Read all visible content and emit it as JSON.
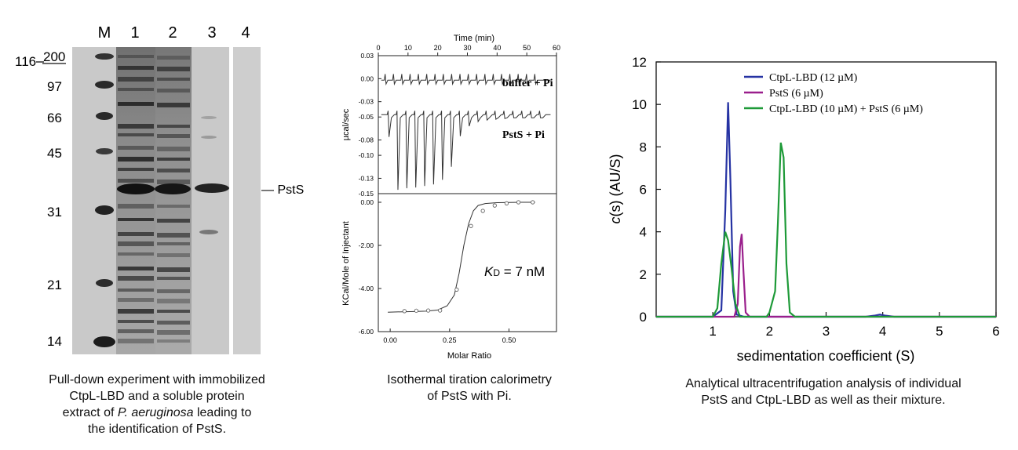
{
  "gel": {
    "lane_labels": [
      "M",
      "1",
      "2",
      "3",
      "4"
    ],
    "marker_labels": [
      "200",
      "97",
      "66",
      "45",
      "31",
      "21",
      "14"
    ],
    "extra_marker_label": "116",
    "band_label": "— PstS",
    "caption_line1": "Pull-down experiment with immobilized",
    "caption_line2": "CtpL-LBD and a soluble protein",
    "caption_line3_pre": "extract of ",
    "caption_line3_italic": "P. aeruginosa",
    "caption_line3_post": " leading to",
    "caption_line4": "the identification of PstS."
  },
  "itc": {
    "top_axis_title": "Time (min)",
    "top_x_ticks": [
      "0",
      "10",
      "20",
      "30",
      "40",
      "50",
      "60"
    ],
    "top_y_title": "µcal/sec",
    "top_y_ticks": [
      "0.03",
      "0.00",
      "-0.03",
      "-0.05",
      "-0.08",
      "-0.10",
      "-0.13",
      "-0.15"
    ],
    "trace_label_1": "buffer + Pi",
    "trace_label_2": "PstS + Pi",
    "bottom_y_title": "KCal/Mole of Injectant",
    "bottom_y_ticks": [
      "0.00",
      "-2.00",
      "-4.00",
      "-6.00"
    ],
    "bottom_x_ticks": [
      "0.00",
      "0.25",
      "0.50"
    ],
    "bottom_x_title": "Molar Ratio",
    "kd_symbol": "K",
    "kd_subscript": "D",
    "kd_value": " = 7 nM",
    "caption_line1": "Isothermal tiration calorimetry",
    "caption_line2": "of PstS with Pi."
  },
  "auc": {
    "caption_line1": "Analytical ultracentrifugation analysis of individual",
    "caption_line2": "PstS and CtpL-LBD as well as their mixture."
  },
  "chart_data": [
    {
      "type": "line",
      "xlabel": "Time (min)",
      "ylabel": "µcal/sec",
      "xlim": [
        0,
        60
      ],
      "ylim": [
        -0.15,
        0.03
      ],
      "series": [
        {
          "name": "buffer + Pi",
          "baseline": -0.002,
          "injection_spike_amplitude": 0.008,
          "injections": 19
        },
        {
          "name": "PstS + Pi",
          "baseline": -0.047,
          "injection_times": [
            3,
            6,
            9,
            12,
            15,
            18,
            21,
            24,
            27,
            30,
            33,
            36,
            39,
            42,
            45,
            48,
            51,
            54
          ],
          "peak_minimum": [
            -0.076,
            -0.145,
            -0.143,
            -0.142,
            -0.14,
            -0.138,
            -0.132,
            -0.115,
            -0.075,
            -0.062,
            -0.056,
            -0.054,
            -0.053,
            -0.052,
            -0.051,
            -0.051,
            -0.051,
            -0.051
          ]
        }
      ]
    },
    {
      "type": "scatter",
      "xlabel": "Molar Ratio",
      "ylabel": "KCal/Mole of Injectant",
      "xlim": [
        -0.05,
        0.7
      ],
      "ylim": [
        -6.0,
        0.4
      ],
      "points": {
        "x": [
          0.06,
          0.11,
          0.16,
          0.21,
          0.28,
          0.34,
          0.39,
          0.44,
          0.49,
          0.54,
          0.6
        ],
        "y": [
          -5.05,
          -5.03,
          -5.02,
          -5.02,
          -4.05,
          -1.1,
          -0.4,
          -0.15,
          -0.05,
          0.0,
          0.0
        ]
      },
      "fit": {
        "x": [
          -0.01,
          0.05,
          0.1,
          0.15,
          0.2,
          0.24,
          0.27,
          0.29,
          0.31,
          0.33,
          0.35,
          0.37,
          0.4,
          0.45,
          0.5,
          0.55,
          0.61
        ],
        "y": [
          -5.1,
          -5.08,
          -5.07,
          -5.05,
          -5.0,
          -4.8,
          -4.3,
          -3.3,
          -2.0,
          -1.0,
          -0.4,
          -0.15,
          -0.06,
          -0.02,
          -0.01,
          0.0,
          0.0
        ]
      },
      "annotation": "KD = 7 nM"
    },
    {
      "type": "line",
      "xlabel": "sedimentation coefficient (S)",
      "ylabel": "c(s) (AU/S)",
      "xlim": [
        0,
        6
      ],
      "ylim": [
        0,
        12
      ],
      "x_ticks": [
        1,
        2,
        3,
        4,
        5,
        6
      ],
      "y_ticks": [
        0,
        2,
        4,
        6,
        8,
        10,
        12
      ],
      "legend": "top-right",
      "series": [
        {
          "name": "CtpL-LBD (12 µM)",
          "color": "#2633a3",
          "x": [
            0,
            1.0,
            1.15,
            1.22,
            1.27,
            1.31,
            1.36,
            1.42,
            1.55,
            3.7,
            3.85,
            3.95,
            4.05,
            4.2,
            6.0
          ],
          "y": [
            0,
            0,
            0.3,
            5.0,
            10.1,
            6.5,
            1.2,
            0.1,
            0,
            0,
            0.05,
            0.1,
            0.05,
            0,
            0
          ]
        },
        {
          "name": "PstS (6 µM)",
          "color": "#9a1f8c",
          "x": [
            0,
            1.38,
            1.44,
            1.48,
            1.51,
            1.54,
            1.58,
            1.65,
            6.0
          ],
          "y": [
            0,
            0,
            0.6,
            3.3,
            3.9,
            2.2,
            0.2,
            0,
            0
          ]
        },
        {
          "name": "CtpL-LBD (10 µM) + PstS (6 µM)",
          "color": "#1e9a38",
          "x": [
            0,
            1.0,
            1.08,
            1.15,
            1.22,
            1.27,
            1.33,
            1.4,
            1.48,
            1.95,
            2.0,
            2.05,
            2.1,
            2.15,
            2.2,
            2.25,
            2.3,
            2.36,
            2.45,
            6.0
          ],
          "y": [
            0,
            0,
            0.4,
            2.5,
            4.0,
            3.6,
            2.3,
            0.6,
            0,
            0,
            0.2,
            0.7,
            1.2,
            4.5,
            8.2,
            7.5,
            2.5,
            0.2,
            0,
            0
          ]
        }
      ]
    }
  ]
}
